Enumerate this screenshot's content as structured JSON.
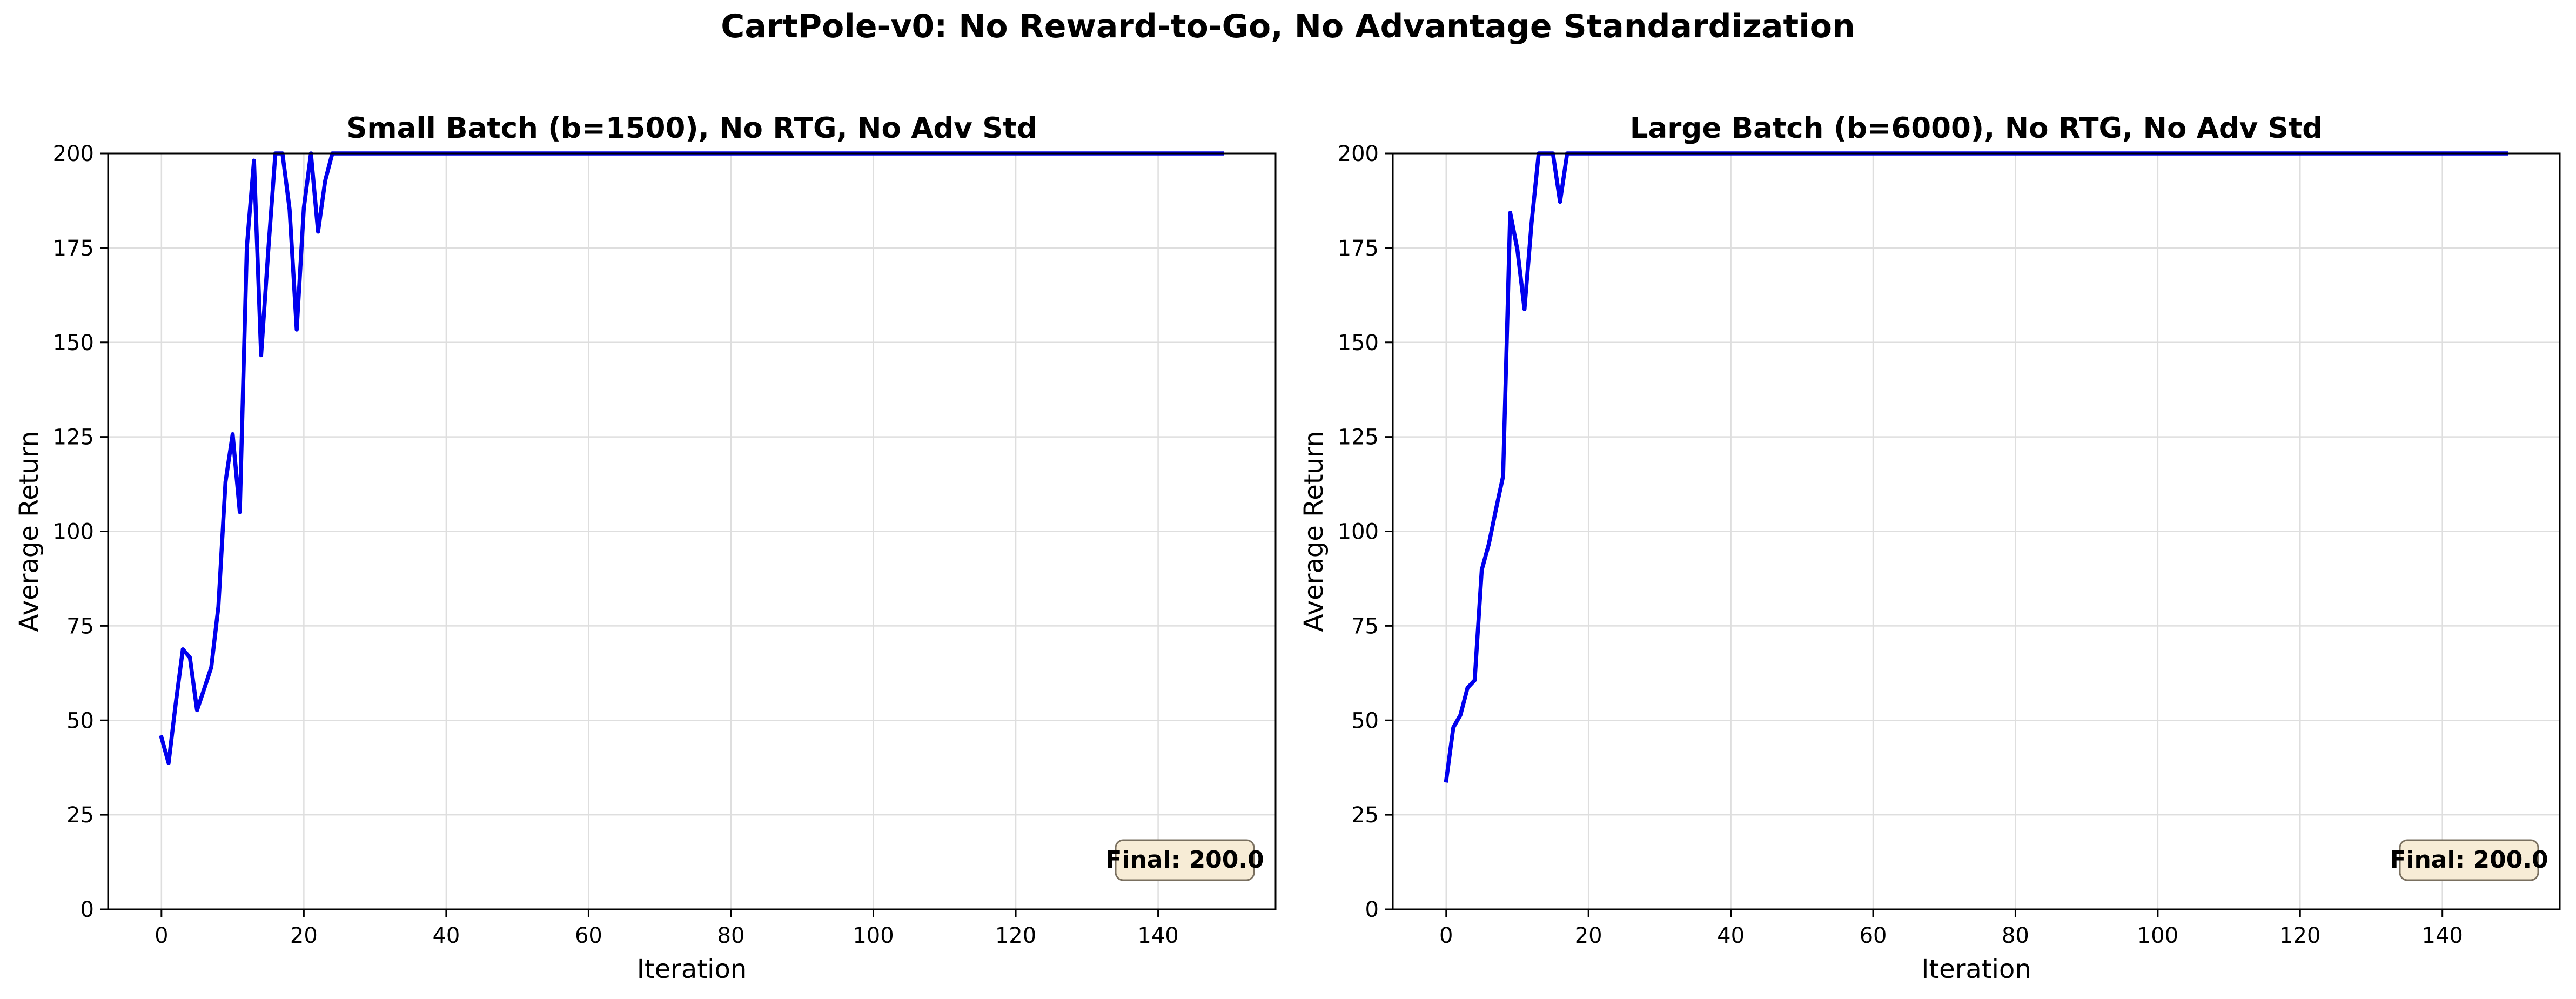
{
  "figure": {
    "suptitle": "CartPole-v0: No Reward-to-Go, No Advantage Standardization"
  },
  "colors": {
    "line": "#0000ee",
    "grid": "#dedede",
    "annotation_fill": "#f7ecd6",
    "annotation_edge": "#7a7060"
  },
  "chart_data": [
    {
      "type": "line",
      "title": "Small Batch (b=1500), No RTG, No Adv Std",
      "xlabel": "Iteration",
      "ylabel": "Average Return",
      "xlim": [
        -7.5,
        156.5
      ],
      "ylim": [
        0,
        200
      ],
      "xticks": [
        0,
        20,
        40,
        60,
        80,
        100,
        120,
        140
      ],
      "yticks": [
        0,
        25,
        50,
        75,
        100,
        125,
        150,
        175,
        200
      ],
      "grid": true,
      "annotation": "Final: 200.0",
      "annotation_position": "bottom-right",
      "series": [
        {
          "x": [
            0,
            1,
            2,
            3,
            4,
            5,
            6,
            7,
            8,
            9,
            10,
            11,
            12,
            13,
            14,
            15,
            16,
            17,
            18,
            19,
            20,
            21,
            22,
            23,
            24,
            25,
            149
          ],
          "y": [
            45.5,
            38.7,
            54.4,
            68.8,
            66.6,
            52.7,
            58.3,
            64.1,
            80.1,
            113.1,
            125.7,
            105.1,
            175.3,
            198.1,
            146.6,
            174.3,
            200,
            200,
            185.2,
            153.4,
            185.6,
            200,
            179.3,
            192.8,
            200,
            200,
            200
          ]
        }
      ]
    },
    {
      "type": "line",
      "title": "Large Batch (b=6000), No RTG, No Adv Std",
      "xlabel": "Iteration",
      "ylabel": "Average Return",
      "xlim": [
        -7.5,
        156.5
      ],
      "ylim": [
        0,
        200
      ],
      "xticks": [
        0,
        20,
        40,
        60,
        80,
        100,
        120,
        140
      ],
      "yticks": [
        0,
        25,
        50,
        75,
        100,
        125,
        150,
        175,
        200
      ],
      "grid": true,
      "annotation": "Final: 200.0",
      "annotation_position": "bottom-right",
      "series": [
        {
          "x": [
            0,
            1,
            2,
            3,
            4,
            5,
            6,
            7,
            8,
            9,
            10,
            11,
            12,
            13,
            14,
            15,
            16,
            17,
            18,
            149
          ],
          "y": [
            34.1,
            48.1,
            51.4,
            58.6,
            60.6,
            89.8,
            96.7,
            105.9,
            114.6,
            184.3,
            174.6,
            158.8,
            181.6,
            200,
            200,
            200,
            187.2,
            200,
            200,
            200
          ]
        }
      ]
    }
  ]
}
